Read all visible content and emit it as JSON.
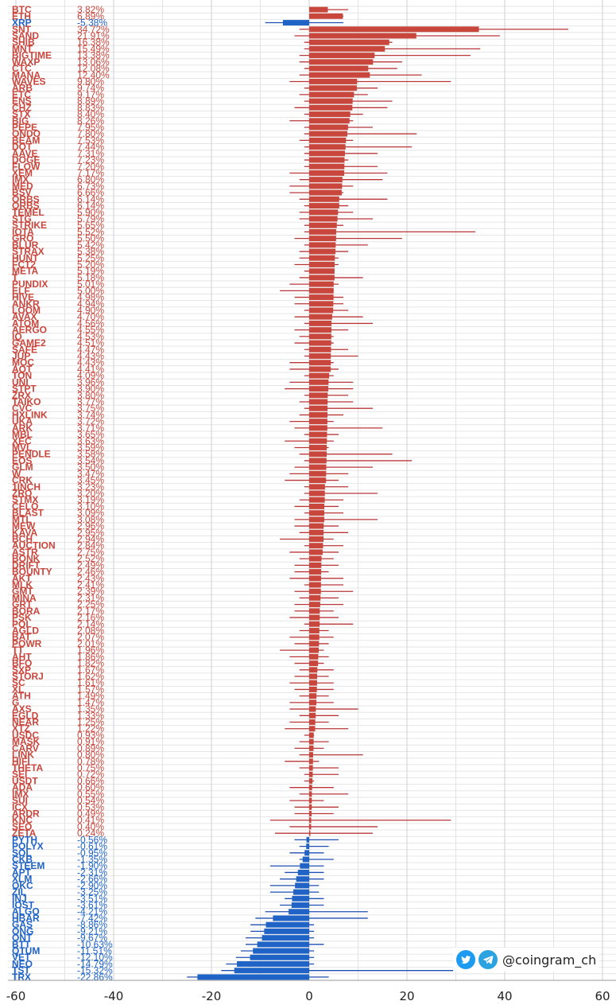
{
  "chart_data": {
    "type": "bar",
    "orientation": "horizontal",
    "xlim": [
      -60,
      60
    ],
    "xticks": [
      "-60",
      "-40",
      "-20",
      "0",
      "20",
      "40",
      "60"
    ],
    "grid": true,
    "colors": {
      "positive": "#c9463d",
      "negative": "#1f63c6",
      "grid": "#d9d9d9",
      "range_line": "#b8373a",
      "range_line_neg": "#1f4fb0"
    },
    "rows": [
      {
        "symbol": "BTC",
        "label": "3.82%",
        "value": 3.82,
        "low": 0,
        "high": 8
      },
      {
        "symbol": "ETH",
        "label": "6.89%",
        "value": 6.89,
        "low": 0,
        "high": 7
      },
      {
        "symbol": "XRP",
        "label": "-5.38%",
        "value": -5.38,
        "low": -9,
        "high": 7
      },
      {
        "symbol": "SNT",
        "label": "34.72%",
        "value": 34.72,
        "low": -2,
        "high": 53
      },
      {
        "symbol": "SAND",
        "label": "21.91%",
        "value": 21.91,
        "low": -3,
        "high": 39
      },
      {
        "symbol": "SHIB",
        "label": "16.38%",
        "value": 16.38,
        "low": -1,
        "high": 17
      },
      {
        "symbol": "MNT",
        "label": "15.49%",
        "value": 15.49,
        "low": -1,
        "high": 35
      },
      {
        "symbol": "BIGTIME",
        "label": "13.38%",
        "value": 13.38,
        "low": -2,
        "high": 33
      },
      {
        "symbol": "WAXP",
        "label": "13.06%",
        "value": 13.06,
        "low": -2,
        "high": 19
      },
      {
        "symbol": "CTC",
        "label": "12.08%",
        "value": 12.08,
        "low": -1,
        "high": 18
      },
      {
        "symbol": "MANA",
        "label": "12.40%",
        "value": 12.4,
        "low": -2,
        "high": 23
      },
      {
        "symbol": "WAVES",
        "label": "9.80%",
        "value": 9.8,
        "low": -4,
        "high": 29
      },
      {
        "symbol": "ARB",
        "label": "9.74%",
        "value": 9.74,
        "low": -1,
        "high": 14
      },
      {
        "symbol": "ETC",
        "label": "9.17%",
        "value": 9.17,
        "low": -2,
        "high": 12
      },
      {
        "symbol": "ENS",
        "label": "8.89%",
        "value": 8.89,
        "low": -1,
        "high": 17
      },
      {
        "symbol": "CHZ",
        "label": "8.83%",
        "value": 8.83,
        "low": -3,
        "high": 16
      },
      {
        "symbol": "STX",
        "label": "8.40%",
        "value": 8.4,
        "low": -1,
        "high": 11
      },
      {
        "symbol": "BIG",
        "label": "8.26%",
        "value": 8.26,
        "low": -4,
        "high": 9
      },
      {
        "symbol": "PEPE",
        "label": "7.95%",
        "value": 7.95,
        "low": -1,
        "high": 13
      },
      {
        "symbol": "ONDO",
        "label": "7.80%",
        "value": 7.8,
        "low": -1,
        "high": 22
      },
      {
        "symbol": "BEAM",
        "label": "7.53%",
        "value": 7.53,
        "low": -2,
        "high": 9
      },
      {
        "symbol": "DOT",
        "label": "7.44%",
        "value": 7.44,
        "low": -1,
        "high": 21
      },
      {
        "symbol": "AAVE",
        "label": "7.31%",
        "value": 7.31,
        "low": -1,
        "high": 14
      },
      {
        "symbol": "DOGE",
        "label": "7.23%",
        "value": 7.23,
        "low": -1,
        "high": 8
      },
      {
        "symbol": "FLOW",
        "label": "7.20%",
        "value": 7.2,
        "low": -1,
        "high": 14
      },
      {
        "symbol": "XEM",
        "label": "7.17%",
        "value": 7.17,
        "low": -4,
        "high": 16
      },
      {
        "symbol": "IMX",
        "label": "6.80%",
        "value": 6.8,
        "low": -2,
        "high": 15
      },
      {
        "symbol": "MED",
        "label": "6.73%",
        "value": 6.73,
        "low": -4,
        "high": 9
      },
      {
        "symbol": "BSV",
        "label": "6.66%",
        "value": 6.66,
        "low": -4,
        "high": 7
      },
      {
        "symbol": "ORBS",
        "label": "6.14%",
        "value": 6.14,
        "low": -2,
        "high": 16
      },
      {
        "symbol": "ORBS",
        "label": "6.14%",
        "value": 6.14,
        "low": -1,
        "high": 8
      },
      {
        "symbol": "TEMEL",
        "label": "5.90%",
        "value": 5.9,
        "low": -2,
        "high": 9
      },
      {
        "symbol": "STG",
        "label": "5.79%",
        "value": 5.79,
        "low": -2,
        "high": 13
      },
      {
        "symbol": "STRIKE",
        "label": "5.65%",
        "value": 5.65,
        "low": -1,
        "high": 7
      },
      {
        "symbol": "IOTA",
        "label": "5.52%",
        "value": 5.52,
        "low": -1,
        "high": 34
      },
      {
        "symbol": "GRO",
        "label": "5.50%",
        "value": 5.5,
        "low": -3,
        "high": 19
      },
      {
        "symbol": "BLUR",
        "label": "5.42%",
        "value": 5.42,
        "low": -1,
        "high": 12
      },
      {
        "symbol": "STRAX",
        "label": "5.38%",
        "value": 5.38,
        "low": -2,
        "high": 8
      },
      {
        "symbol": "HUNT",
        "label": "5.25%",
        "value": 5.25,
        "low": -2,
        "high": 6
      },
      {
        "symbol": "FCT2",
        "label": "5.20%",
        "value": 5.2,
        "low": -3,
        "high": 6
      },
      {
        "symbol": "META",
        "label": "5.19%",
        "value": 5.19,
        "low": -1,
        "high": 5
      },
      {
        "symbol": "T",
        "label": "5.18%",
        "value": 5.18,
        "low": -2,
        "high": 11
      },
      {
        "symbol": "PUNDIX",
        "label": "5.01%",
        "value": 5.01,
        "low": -4,
        "high": 6
      },
      {
        "symbol": "ELF",
        "label": "5.00%",
        "value": 5,
        "low": -6,
        "high": 5
      },
      {
        "symbol": "HIVE",
        "label": "4.98%",
        "value": 4.98,
        "low": -3,
        "high": 7
      },
      {
        "symbol": "ANKR",
        "label": "4.94%",
        "value": 4.94,
        "low": -3,
        "high": 7
      },
      {
        "symbol": "LOOM",
        "label": "4.90%",
        "value": 4.9,
        "low": -1,
        "high": 8
      },
      {
        "symbol": "AVAX",
        "label": "4.70%",
        "value": 4.7,
        "low": -3,
        "high": 11
      },
      {
        "symbol": "ATOM",
        "label": "4.56%",
        "value": 4.56,
        "low": -1,
        "high": 13
      },
      {
        "symbol": "AERGO",
        "label": "4.55%",
        "value": 4.55,
        "low": -3,
        "high": 8
      },
      {
        "symbol": "IQ",
        "label": "4.53%",
        "value": 4.53,
        "low": -2,
        "high": 5
      },
      {
        "symbol": "GAME2",
        "label": "4.51%",
        "value": 4.51,
        "low": -3,
        "high": 5
      },
      {
        "symbol": "SAFE",
        "label": "4.47%",
        "value": 4.47,
        "low": -1,
        "high": 8
      },
      {
        "symbol": "JUP",
        "label": "4.43%",
        "value": 4.43,
        "low": -1,
        "high": 10
      },
      {
        "symbol": "MOC",
        "label": "4.43%",
        "value": 4.43,
        "low": -4,
        "high": 5
      },
      {
        "symbol": "AQT",
        "label": "4.41%",
        "value": 4.41,
        "low": -4,
        "high": 6
      },
      {
        "symbol": "TON",
        "label": "4.09%",
        "value": 4.09,
        "low": -1,
        "high": 5
      },
      {
        "symbol": "UNI",
        "label": "3.96%",
        "value": 3.96,
        "low": -4,
        "high": 9
      },
      {
        "symbol": "STPT",
        "label": "3.90%",
        "value": 3.9,
        "low": -5,
        "high": 9
      },
      {
        "symbol": "ZRX",
        "label": "3.80%",
        "value": 3.8,
        "low": -1,
        "high": 8
      },
      {
        "symbol": "TAIKO",
        "label": "3.77%",
        "value": 3.77,
        "low": -2,
        "high": 9
      },
      {
        "symbol": "CVC",
        "label": "3.75%",
        "value": 3.75,
        "low": -1,
        "high": 13
      },
      {
        "symbol": "HXLINK",
        "label": "3.74%",
        "value": 3.74,
        "low": -2,
        "high": 7
      },
      {
        "symbol": "UKA",
        "label": "3.72%",
        "value": 3.72,
        "low": -4,
        "high": 5
      },
      {
        "symbol": "ARK",
        "label": "3.71%",
        "value": 3.71,
        "low": -3,
        "high": 15
      },
      {
        "symbol": "MBL",
        "label": "3.65%",
        "value": 3.65,
        "low": -1,
        "high": 6
      },
      {
        "symbol": "XEC",
        "label": "3.63%",
        "value": 3.63,
        "low": -5,
        "high": 5
      },
      {
        "symbol": "MVL",
        "label": "3.59%",
        "value": 3.59,
        "low": -3,
        "high": 4
      },
      {
        "symbol": "PENDLE",
        "label": "3.58%",
        "value": 3.58,
        "low": -2,
        "high": 17
      },
      {
        "symbol": "EOS",
        "label": "3.54%",
        "value": 3.54,
        "low": -1,
        "high": 21
      },
      {
        "symbol": "GLM",
        "label": "3.50%",
        "value": 3.5,
        "low": -3,
        "high": 13
      },
      {
        "symbol": "W",
        "label": "3.47%",
        "value": 3.47,
        "low": -4,
        "high": 8
      },
      {
        "symbol": "CRK",
        "label": "3.45%",
        "value": 3.45,
        "low": -5,
        "high": 6
      },
      {
        "symbol": "1INCH",
        "label": "3.23%",
        "value": 3.23,
        "low": -1,
        "high": 8
      },
      {
        "symbol": "ZRO",
        "label": "3.20%",
        "value": 3.2,
        "low": -1,
        "high": 14
      },
      {
        "symbol": "STMX",
        "label": "3.19%",
        "value": 3.19,
        "low": -2,
        "high": 7
      },
      {
        "symbol": "CELO",
        "label": "3.10%",
        "value": 3.1,
        "low": -3,
        "high": 6
      },
      {
        "symbol": "BLAST",
        "label": "3.09%",
        "value": 3.09,
        "low": -1,
        "high": 7
      },
      {
        "symbol": "MTL",
        "label": "3.08%",
        "value": 3.08,
        "low": -3,
        "high": 14
      },
      {
        "symbol": "MEW",
        "label": "2.96%",
        "value": 2.96,
        "low": -3,
        "high": 6
      },
      {
        "symbol": "KAVA",
        "label": "2.95%",
        "value": 2.95,
        "low": -2,
        "high": 8
      },
      {
        "symbol": "BCH",
        "label": "2.94%",
        "value": 2.94,
        "low": -6,
        "high": 5
      },
      {
        "symbol": "AUCTION",
        "label": "2.84%",
        "value": 2.84,
        "low": -1,
        "high": 7
      },
      {
        "symbol": "ASTR",
        "label": "2.75%",
        "value": 2.75,
        "low": -4,
        "high": 6
      },
      {
        "symbol": "BONK",
        "label": "2.52%",
        "value": 2.52,
        "low": -2,
        "high": 5
      },
      {
        "symbol": "DRIFT",
        "label": "2.49%",
        "value": 2.49,
        "low": -3,
        "high": 6
      },
      {
        "symbol": "BOUNTY",
        "label": "2.46%",
        "value": 2.46,
        "low": -3,
        "high": 4
      },
      {
        "symbol": "AKT",
        "label": "2.43%",
        "value": 2.43,
        "low": -4,
        "high": 7
      },
      {
        "symbol": "MLK",
        "label": "2.41%",
        "value": 2.41,
        "low": -1,
        "high": 7
      },
      {
        "symbol": "GMT",
        "label": "2.39%",
        "value": 2.39,
        "low": -3,
        "high": 9
      },
      {
        "symbol": "MINA",
        "label": "2.31%",
        "value": 2.31,
        "low": -2,
        "high": 6
      },
      {
        "symbol": "GRT",
        "label": "2.25%",
        "value": 2.25,
        "low": -3,
        "high": 7
      },
      {
        "symbol": "BORA",
        "label": "2.17%",
        "value": 2.17,
        "low": -3,
        "high": 5
      },
      {
        "symbol": "PSK",
        "label": "2.16%",
        "value": 2.16,
        "low": -4,
        "high": 6
      },
      {
        "symbol": "POL",
        "label": "2.14%",
        "value": 2.14,
        "low": -1,
        "high": 9
      },
      {
        "symbol": "AGLD",
        "label": "2.08%",
        "value": 2.08,
        "low": -2,
        "high": 4
      },
      {
        "symbol": "BAT",
        "label": "2.07%",
        "value": 2.07,
        "low": -4,
        "high": 5
      },
      {
        "symbol": "POWR",
        "label": "2.01%",
        "value": 2.01,
        "low": -3,
        "high": 4
      },
      {
        "symbol": "TT",
        "label": "1.96%",
        "value": 1.96,
        "low": -6,
        "high": 3
      },
      {
        "symbol": "AHT",
        "label": "1.86%",
        "value": 1.86,
        "low": -4,
        "high": 4
      },
      {
        "symbol": "BFO",
        "label": "1.82%",
        "value": 1.82,
        "low": -3,
        "high": 3
      },
      {
        "symbol": "SXP",
        "label": "1.67%",
        "value": 1.67,
        "low": -2,
        "high": 5
      },
      {
        "symbol": "STORJ",
        "label": "1.62%",
        "value": 1.62,
        "low": -3,
        "high": 4
      },
      {
        "symbol": "SC",
        "label": "1.61%",
        "value": 1.61,
        "low": -4,
        "high": 5
      },
      {
        "symbol": "XL",
        "label": "1.57%",
        "value": 1.57,
        "low": -3,
        "high": 5
      },
      {
        "symbol": "ATH",
        "label": "1.49%",
        "value": 1.49,
        "low": -2,
        "high": 4
      },
      {
        "symbol": "G",
        "label": "1.47%",
        "value": 1.47,
        "low": -4,
        "high": 5
      },
      {
        "symbol": "AXS",
        "label": "1.35%",
        "value": 1.35,
        "low": -4,
        "high": 10
      },
      {
        "symbol": "EGLD",
        "label": "1.33%",
        "value": 1.33,
        "low": -2,
        "high": 6
      },
      {
        "symbol": "NEAR",
        "label": "1.25%",
        "value": 1.25,
        "low": -4,
        "high": 4
      },
      {
        "symbol": "XTZ",
        "label": "1.22%",
        "value": 1.22,
        "low": -5,
        "high": 8
      },
      {
        "symbol": "USDC",
        "label": "0.93%",
        "value": 0.93,
        "low": -1,
        "high": 1
      },
      {
        "symbol": "MASK",
        "label": "0.91%",
        "value": 0.91,
        "low": -2,
        "high": 4
      },
      {
        "symbol": "CARV",
        "label": "0.89%",
        "value": 0.89,
        "low": -3,
        "high": 3
      },
      {
        "symbol": "LINK",
        "label": "0.80%",
        "value": 0.8,
        "low": -2,
        "high": 11
      },
      {
        "symbol": "HIFI",
        "label": "0.78%",
        "value": 0.78,
        "low": -5,
        "high": 2
      },
      {
        "symbol": "THETA",
        "label": "0.75%",
        "value": 0.75,
        "low": -2,
        "high": 6
      },
      {
        "symbol": "SEI",
        "label": "0.72%",
        "value": 0.72,
        "low": -1,
        "high": 6
      },
      {
        "symbol": "USDT",
        "label": "0.66%",
        "value": 0.66,
        "low": -1,
        "high": 1
      },
      {
        "symbol": "ADA",
        "label": "0.60%",
        "value": 0.6,
        "low": -4,
        "high": 5
      },
      {
        "symbol": "IMX",
        "label": "0.55%",
        "value": 0.55,
        "low": -2,
        "high": 8
      },
      {
        "symbol": "SUI",
        "label": "0.54%",
        "value": 0.54,
        "low": -4,
        "high": 3
      },
      {
        "symbol": "ICX",
        "label": "0.53%",
        "value": 0.53,
        "low": -3,
        "high": 6
      },
      {
        "symbol": "ARDR",
        "label": "0.49%",
        "value": 0.49,
        "low": -3,
        "high": 5
      },
      {
        "symbol": "KNC",
        "label": "0.41%",
        "value": 0.41,
        "low": -8,
        "high": 29
      },
      {
        "symbol": "SEO",
        "label": "0.40%",
        "value": 0.4,
        "low": -4,
        "high": 14
      },
      {
        "symbol": "ZETA",
        "label": "0.24%",
        "value": 0.24,
        "low": -7,
        "high": 13
      },
      {
        "symbol": "PYTH",
        "label": "-0.56%",
        "value": -0.56,
        "low": -3,
        "high": 6
      },
      {
        "symbol": "POLYX",
        "label": "-0.61%",
        "value": -0.61,
        "low": -2,
        "high": 4
      },
      {
        "symbol": "SOL",
        "label": "-0.95%",
        "value": -0.95,
        "low": -4,
        "high": 3
      },
      {
        "symbol": "CKB",
        "label": "-1.35%",
        "value": -1.35,
        "low": -2,
        "high": 5
      },
      {
        "symbol": "STEEM",
        "label": "-1.90%",
        "value": -1.9,
        "low": -8,
        "high": 3
      },
      {
        "symbol": "APT",
        "label": "-2.31%",
        "value": -2.31,
        "low": -5,
        "high": 3
      },
      {
        "symbol": "XLM",
        "label": "-2.66%",
        "value": -2.66,
        "low": -6,
        "high": 3
      },
      {
        "symbol": "OKC",
        "label": "-2.90%",
        "value": -2.9,
        "low": -8,
        "high": 2
      },
      {
        "symbol": "ZIL",
        "label": "-3.25%",
        "value": -3.25,
        "low": -8,
        "high": 2
      },
      {
        "symbol": "INJ",
        "label": "-3.51%",
        "value": -3.51,
        "low": -5,
        "high": 3
      },
      {
        "symbol": "IOST",
        "label": "-3.61%",
        "value": -3.61,
        "low": -6,
        "high": 3
      },
      {
        "symbol": "ALGO",
        "label": "-4.21%",
        "value": -4.21,
        "low": -9,
        "high": 12
      },
      {
        "symbol": "HBAR",
        "label": "-7.42%",
        "value": -7.42,
        "low": -11,
        "high": 12
      },
      {
        "symbol": "GAS",
        "label": "-8.86%",
        "value": -8.86,
        "low": -12,
        "high": 1
      },
      {
        "symbol": "ONG",
        "label": "-9.21%",
        "value": -9.21,
        "low": -12,
        "high": 1
      },
      {
        "symbol": "ONT",
        "label": "-9.67%",
        "value": -9.67,
        "low": -13,
        "high": 1
      },
      {
        "symbol": "BTT",
        "label": "-10.63%",
        "value": -10.63,
        "low": -13,
        "high": 3
      },
      {
        "symbol": "QTUM",
        "label": "-11.51%",
        "value": -11.51,
        "low": -14,
        "high": 1
      },
      {
        "symbol": "VET",
        "label": "-12.10%",
        "value": -12.1,
        "low": -15,
        "high": 1
      },
      {
        "symbol": "NEO",
        "label": "-14.79%",
        "value": -14.79,
        "low": -17,
        "high": 1
      },
      {
        "symbol": "TST",
        "label": "-15.32%",
        "value": -15.32,
        "low": -18,
        "high": 30
      },
      {
        "symbol": "TRX",
        "label": "-22.86%",
        "value": -22.86,
        "low": -25,
        "high": 4
      }
    ]
  },
  "watermark": {
    "handle": "@coingram_ch",
    "icons": [
      "twitter-icon",
      "telegram-icon"
    ]
  }
}
